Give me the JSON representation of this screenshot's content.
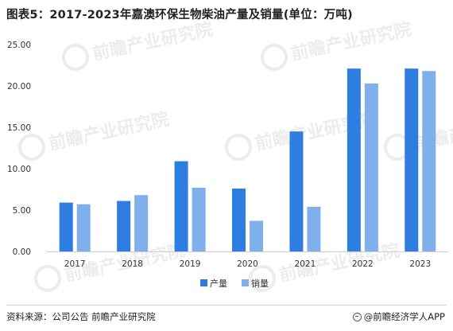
{
  "chart_data": {
    "type": "bar",
    "title": "图表5：2017-2023年嘉澳环保生物柴油产量及销量(单位：万吨)",
    "categories": [
      "2017",
      "2018",
      "2019",
      "2020",
      "2021",
      "2022",
      "2023"
    ],
    "series": [
      {
        "name": "产量",
        "color": "#2e7de0",
        "values": [
          5.9,
          6.1,
          10.9,
          7.6,
          14.5,
          22.1,
          22.1
        ]
      },
      {
        "name": "销量",
        "color": "#7fb0ec",
        "values": [
          5.7,
          6.8,
          7.7,
          3.7,
          5.4,
          20.3,
          21.8
        ]
      }
    ],
    "ylim": [
      0,
      25
    ],
    "yticks": [
      "0.00",
      "5.00",
      "10.00",
      "15.00",
      "20.00",
      "25.00"
    ],
    "xlabel": "",
    "ylabel": "",
    "grid": false,
    "legend_position": "bottom-center"
  },
  "footer": {
    "source": "资料来源：公司公告 前瞻产业研究院",
    "brand": "@前瞻经济学人APP"
  },
  "watermark": {
    "text": "前瞻产业研究院"
  }
}
